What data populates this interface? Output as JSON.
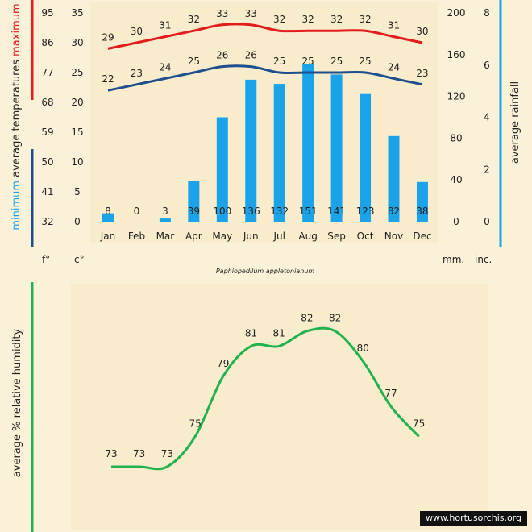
{
  "chart_data": [
    {
      "type": "bar+line",
      "title": "",
      "categories": [
        "Jan",
        "Feb",
        "Mar",
        "Apr",
        "May",
        "Jun",
        "Jul",
        "Aug",
        "Sep",
        "Oct",
        "Nov",
        "Dec"
      ],
      "series": [
        {
          "name": "maximum",
          "kind": "line",
          "axis": "celsius",
          "color": "#e21b1b",
          "values": [
            29,
            30,
            31,
            32,
            33,
            33,
            32,
            32,
            32,
            32,
            31,
            30
          ]
        },
        {
          "name": "minimum",
          "kind": "line",
          "axis": "celsius",
          "color": "#1f4e8c",
          "values": [
            22,
            23,
            24,
            25,
            26,
            26,
            25,
            25,
            25,
            25,
            24,
            23
          ]
        },
        {
          "name": "rainfall",
          "kind": "bar",
          "axis": "mm",
          "color": "#1aa3e8",
          "values": [
            8,
            0,
            3,
            39,
            100,
            136,
            132,
            151,
            141,
            123,
            82,
            38
          ]
        }
      ],
      "left_label": {
        "part1": "minimum",
        "part2": "average  temperatures",
        "part3": "maximum"
      },
      "right_label": "average rainfall",
      "fahrenheit_ticks": [
        "95",
        "86",
        "77",
        "68",
        "59",
        "50",
        "41",
        "32"
      ],
      "celsius_ticks": [
        "35",
        "30",
        "25",
        "20",
        "15",
        "10",
        "5",
        "0"
      ],
      "mm_ticks": [
        "200",
        "160",
        "120",
        "80",
        "40",
        "0"
      ],
      "inch_ticks": [
        "8",
        "6",
        "4",
        "2",
        "0"
      ],
      "unit_labels": {
        "f": "f°",
        "c": "c°",
        "mm": "mm.",
        "inch": "inc."
      },
      "ylim_celsius": [
        0,
        35
      ],
      "ylim_mm": [
        0,
        200
      ],
      "caption": "Paphiopedilum appletonianum"
    },
    {
      "type": "line",
      "categories": [
        "Jan",
        "Feb",
        "Mar",
        "Apr",
        "May",
        "Jun",
        "Jul",
        "Aug",
        "Sep",
        "Oct",
        "Nov",
        "Dec"
      ],
      "series": [
        {
          "name": "relative humidity",
          "color": "#22b14c",
          "values": [
            73,
            73,
            73,
            75,
            79,
            81,
            81,
            82,
            82,
            80,
            77,
            75
          ]
        }
      ],
      "ylabel": "average %  relative humidity"
    }
  ],
  "colors": {
    "background": "#fbf1d8",
    "panel": "#f8eccd",
    "red": "#e21b1b",
    "navy": "#1f4e8c",
    "blue": "#1aa3e8",
    "green": "#22b14c"
  },
  "watermark": "www.hortusorchis.org"
}
